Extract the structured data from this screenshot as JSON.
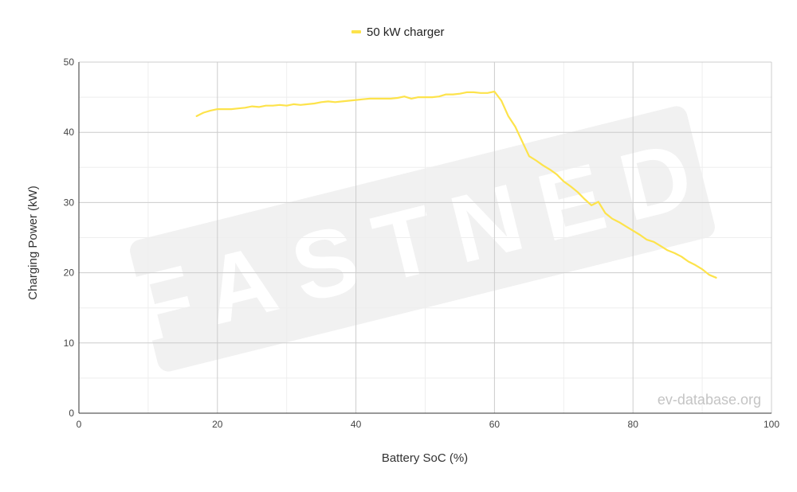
{
  "chart_data": {
    "type": "line",
    "title": "",
    "xlabel": "Battery SoC (%)",
    "ylabel": "Charging Power (kW)",
    "xlim": [
      0,
      100
    ],
    "ylim": [
      0,
      50
    ],
    "xticks": [
      0,
      20,
      40,
      60,
      80,
      100
    ],
    "yticks": [
      0,
      10,
      20,
      30,
      40,
      50
    ],
    "grid": true,
    "legend_position": "top-center",
    "series": [
      {
        "name": "50 kW charger",
        "color": "#fde34b",
        "points": [
          [
            17,
            42.3
          ],
          [
            18,
            42.8
          ],
          [
            19,
            43.1
          ],
          [
            20,
            43.3
          ],
          [
            21,
            43.3
          ],
          [
            22,
            43.3
          ],
          [
            23,
            43.4
          ],
          [
            24,
            43.5
          ],
          [
            25,
            43.7
          ],
          [
            26,
            43.6
          ],
          [
            27,
            43.8
          ],
          [
            28,
            43.8
          ],
          [
            29,
            43.9
          ],
          [
            30,
            43.8
          ],
          [
            31,
            44.0
          ],
          [
            32,
            43.9
          ],
          [
            33,
            44.0
          ],
          [
            34,
            44.1
          ],
          [
            35,
            44.3
          ],
          [
            36,
            44.4
          ],
          [
            37,
            44.3
          ],
          [
            38,
            44.4
          ],
          [
            39,
            44.5
          ],
          [
            40,
            44.6
          ],
          [
            41,
            44.7
          ],
          [
            42,
            44.8
          ],
          [
            43,
            44.8
          ],
          [
            44,
            44.8
          ],
          [
            45,
            44.8
          ],
          [
            46,
            44.9
          ],
          [
            47,
            45.1
          ],
          [
            48,
            44.8
          ],
          [
            49,
            45.0
          ],
          [
            50,
            45.0
          ],
          [
            51,
            45.0
          ],
          [
            52,
            45.1
          ],
          [
            53,
            45.4
          ],
          [
            54,
            45.4
          ],
          [
            55,
            45.5
          ],
          [
            56,
            45.7
          ],
          [
            57,
            45.7
          ],
          [
            58,
            45.6
          ],
          [
            59,
            45.6
          ],
          [
            60,
            45.8
          ],
          [
            61,
            44.5
          ],
          [
            62,
            42.3
          ],
          [
            63,
            40.8
          ],
          [
            64,
            38.7
          ],
          [
            65,
            36.6
          ],
          [
            66,
            36.0
          ],
          [
            67,
            35.3
          ],
          [
            68,
            34.7
          ],
          [
            69,
            34.0
          ],
          [
            70,
            33.0
          ],
          [
            71,
            32.3
          ],
          [
            72,
            31.5
          ],
          [
            73,
            30.5
          ],
          [
            74,
            29.6
          ],
          [
            75,
            30.1
          ],
          [
            76,
            28.5
          ],
          [
            77,
            27.7
          ],
          [
            78,
            27.2
          ],
          [
            79,
            26.6
          ],
          [
            80,
            26.0
          ],
          [
            81,
            25.4
          ],
          [
            82,
            24.7
          ],
          [
            83,
            24.4
          ],
          [
            84,
            23.8
          ],
          [
            85,
            23.2
          ],
          [
            86,
            22.8
          ],
          [
            87,
            22.3
          ],
          [
            88,
            21.6
          ],
          [
            89,
            21.1
          ],
          [
            90,
            20.5
          ],
          [
            91,
            19.7
          ],
          [
            92,
            19.3
          ]
        ]
      }
    ]
  },
  "legend": {
    "label": "50 kW charger"
  },
  "watermarks": {
    "logo_text": "FASTNED",
    "site_text": "ev-database.org"
  },
  "tick_labels": {
    "x": [
      "0",
      "20",
      "40",
      "60",
      "80",
      "100"
    ],
    "y": [
      "0",
      "10",
      "20",
      "30",
      "40",
      "50"
    ]
  }
}
